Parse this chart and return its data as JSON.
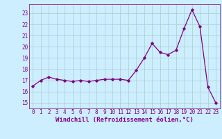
{
  "x": [
    0,
    1,
    2,
    3,
    4,
    5,
    6,
    7,
    8,
    9,
    10,
    11,
    12,
    13,
    14,
    15,
    16,
    17,
    18,
    19,
    20,
    21,
    22,
    23
  ],
  "y": [
    16.5,
    17.0,
    17.3,
    17.1,
    17.0,
    16.9,
    17.0,
    16.9,
    17.0,
    17.1,
    17.1,
    17.1,
    17.0,
    17.9,
    19.0,
    20.3,
    19.5,
    19.3,
    19.7,
    21.6,
    23.3,
    21.8,
    16.4,
    15.0
  ],
  "line_color": "#800080",
  "marker": "D",
  "marker_size": 1.8,
  "line_width": 0.9,
  "bg_color": "#cceeff",
  "grid_color": "#aacccc",
  "xlabel": "Windchill (Refroidissement éolien,°C)",
  "xlabel_fontsize": 6.5,
  "xlabel_color": "#800080",
  "xtick_labels": [
    "0",
    "1",
    "2",
    "3",
    "4",
    "5",
    "6",
    "7",
    "8",
    "9",
    "10",
    "11",
    "12",
    "13",
    "14",
    "15",
    "16",
    "17",
    "18",
    "19",
    "20",
    "21",
    "22",
    "23"
  ],
  "ytick_labels": [
    "15",
    "16",
    "17",
    "18",
    "19",
    "20",
    "21",
    "22",
    "23"
  ],
  "ylim": [
    14.5,
    23.8
  ],
  "xlim": [
    -0.5,
    23.5
  ],
  "tick_fontsize": 5.5,
  "tick_color": "#800080"
}
